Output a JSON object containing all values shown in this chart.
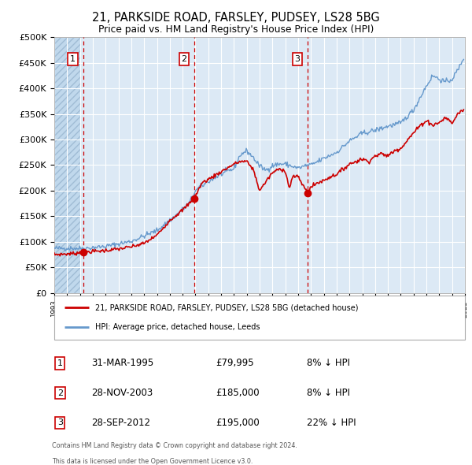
{
  "title_line1": "21, PARKSIDE ROAD, FARSLEY, PUDSEY, LS28 5BG",
  "title_line2": "Price paid vs. HM Land Registry's House Price Index (HPI)",
  "legend_red": "21, PARKSIDE ROAD, FARSLEY, PUDSEY, LS28 5BG (detached house)",
  "legend_blue": "HPI: Average price, detached house, Leeds",
  "transactions": [
    {
      "num": 1,
      "date": "31-MAR-1995",
      "price": 79995,
      "pct": "8%",
      "dir": "↓"
    },
    {
      "num": 2,
      "date": "28-NOV-2003",
      "price": 185000,
      "pct": "8%",
      "dir": "↓"
    },
    {
      "num": 3,
      "date": "28-SEP-2012",
      "price": 195000,
      "pct": "22%",
      "dir": "↓"
    }
  ],
  "transaction_dates_decimal": [
    1995.25,
    2003.917,
    2012.75
  ],
  "transaction_prices": [
    79995,
    185000,
    195000
  ],
  "footnote1": "Contains HM Land Registry data © Crown copyright and database right 2024.",
  "footnote2": "This data is licensed under the Open Government Licence v3.0.",
  "ylim_max": 500000,
  "ylim_min": 0,
  "xmin": 1993,
  "xmax": 2025,
  "bg_color": "#dce9f5",
  "hatch_color": "#c8daea",
  "red_line_color": "#cc0000",
  "blue_line_color": "#6699cc",
  "vline_color": "#cc0000",
  "grid_color": "#ffffff",
  "label_box_edge": "#cc0000",
  "hpi_anchors": [
    [
      1993.0,
      87000
    ],
    [
      1994.0,
      87500
    ],
    [
      1995.25,
      87000
    ],
    [
      1997.0,
      91000
    ],
    [
      1999.0,
      101000
    ],
    [
      2001.0,
      122000
    ],
    [
      2002.5,
      152000
    ],
    [
      2003.5,
      175000
    ],
    [
      2004.0,
      200000
    ],
    [
      2005.0,
      218000
    ],
    [
      2006.0,
      232000
    ],
    [
      2007.0,
      243000
    ],
    [
      2007.5,
      270000
    ],
    [
      2008.0,
      278000
    ],
    [
      2008.5,
      265000
    ],
    [
      2009.0,
      248000
    ],
    [
      2009.5,
      240000
    ],
    [
      2010.0,
      249000
    ],
    [
      2010.5,
      252000
    ],
    [
      2011.0,
      252000
    ],
    [
      2011.5,
      248000
    ],
    [
      2012.0,
      244000
    ],
    [
      2012.5,
      248000
    ],
    [
      2012.75,
      250000
    ],
    [
      2013.0,
      250000
    ],
    [
      2014.0,
      263000
    ],
    [
      2015.0,
      275000
    ],
    [
      2016.0,
      297000
    ],
    [
      2017.0,
      312000
    ],
    [
      2018.0,
      318000
    ],
    [
      2019.0,
      326000
    ],
    [
      2020.0,
      332000
    ],
    [
      2021.0,
      358000
    ],
    [
      2022.0,
      405000
    ],
    [
      2022.5,
      425000
    ],
    [
      2023.0,
      418000
    ],
    [
      2023.5,
      412000
    ],
    [
      2024.0,
      418000
    ],
    [
      2024.5,
      438000
    ],
    [
      2024.9,
      460000
    ]
  ],
  "red_anchors": [
    [
      1993.0,
      75000
    ],
    [
      1994.5,
      77000
    ],
    [
      1995.25,
      79995
    ],
    [
      1996.0,
      81000
    ],
    [
      1997.0,
      83000
    ],
    [
      1998.0,
      86000
    ],
    [
      1999.0,
      90000
    ],
    [
      2000.0,
      97000
    ],
    [
      2001.0,
      113000
    ],
    [
      2002.0,
      142000
    ],
    [
      2003.0,
      162000
    ],
    [
      2003.917,
      185000
    ],
    [
      2004.5,
      215000
    ],
    [
      2005.0,
      222000
    ],
    [
      2006.0,
      237000
    ],
    [
      2007.0,
      252000
    ],
    [
      2007.5,
      257000
    ],
    [
      2008.0,
      257000
    ],
    [
      2008.5,
      242000
    ],
    [
      2009.0,
      200000
    ],
    [
      2009.5,
      218000
    ],
    [
      2010.0,
      235000
    ],
    [
      2010.5,
      242000
    ],
    [
      2011.0,
      240000
    ],
    [
      2011.3,
      205000
    ],
    [
      2011.6,
      228000
    ],
    [
      2012.0,
      227000
    ],
    [
      2012.75,
      195000
    ],
    [
      2013.0,
      207000
    ],
    [
      2013.5,
      215000
    ],
    [
      2014.0,
      220000
    ],
    [
      2014.5,
      227000
    ],
    [
      2015.0,
      232000
    ],
    [
      2016.0,
      252000
    ],
    [
      2016.5,
      257000
    ],
    [
      2017.0,
      262000
    ],
    [
      2017.5,
      257000
    ],
    [
      2018.0,
      268000
    ],
    [
      2018.5,
      272000
    ],
    [
      2019.0,
      268000
    ],
    [
      2019.5,
      278000
    ],
    [
      2020.0,
      283000
    ],
    [
      2020.5,
      298000
    ],
    [
      2021.0,
      313000
    ],
    [
      2021.5,
      327000
    ],
    [
      2022.0,
      337000
    ],
    [
      2022.5,
      328000
    ],
    [
      2023.0,
      333000
    ],
    [
      2023.5,
      343000
    ],
    [
      2024.0,
      332000
    ],
    [
      2024.5,
      352000
    ],
    [
      2024.9,
      358000
    ]
  ]
}
